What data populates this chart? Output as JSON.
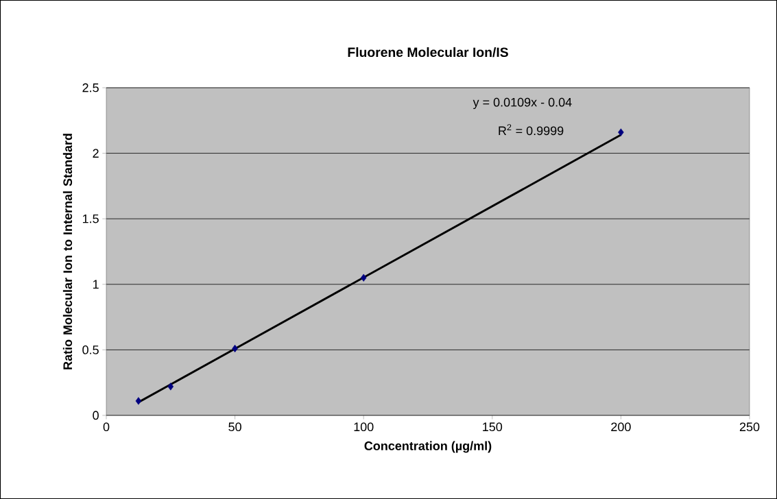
{
  "chart_data": {
    "type": "scatter",
    "title": "Fluorene Molecular Ion/IS",
    "xlabel": "Concentration (µg/ml)",
    "ylabel": "Ratio Molecular Ion to Internal Standard",
    "series": [
      {
        "color": "#000080",
        "x": [
          12.5,
          25,
          50,
          100,
          200
        ],
        "values": [
          0.11,
          0.22,
          0.51,
          1.05,
          2.16
        ]
      },
      {
        "type": "line",
        "color": "#000000",
        "marker": "none",
        "x": [
          12.5,
          200
        ],
        "values": [
          0.1,
          2.14
        ]
      }
    ],
    "annotations": [
      "y = 0.0109x - 0.04",
      "R$^{2}$ = 0.9999"
    ],
    "xlim": [
      0,
      250
    ],
    "xticks": [
      0,
      50,
      100,
      150,
      200,
      250
    ],
    "ylim": [
      0,
      2.5
    ],
    "yticks": [
      0,
      0.5,
      1,
      1.5,
      2,
      2.5
    ],
    "grid": "y",
    "marker": "diamond",
    "line_style": "solid"
  }
}
